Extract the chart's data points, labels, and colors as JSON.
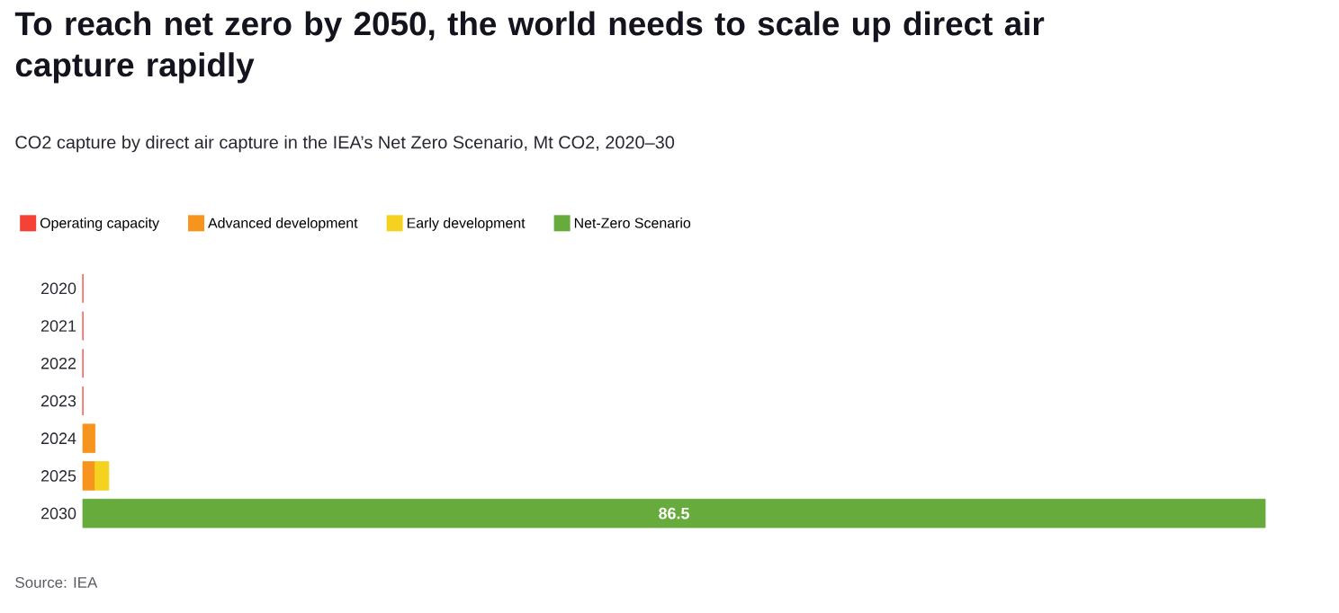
{
  "chart_data": {
    "type": "bar",
    "orientation": "horizontal",
    "stacked": true,
    "title": "To reach net zero by 2050, the world needs to scale up direct air capture rapidly",
    "subtitle": "CO2 capture by direct air capture in the IEA’s Net Zero Scenario, Mt CO2, 2020–30",
    "categories": [
      "2020",
      "2021",
      "2022",
      "2023",
      "2024",
      "2025",
      "2030"
    ],
    "series": [
      {
        "name": "Operating capacity",
        "color": "#f44336",
        "values": [
          0.01,
          0.01,
          0.01,
          0.01,
          null,
          null,
          null
        ]
      },
      {
        "name": "Advanced development",
        "color": "#f7941d",
        "values": [
          null,
          null,
          null,
          null,
          0.9,
          0.9,
          null
        ]
      },
      {
        "name": "Early development",
        "color": "#f5d21f",
        "values": [
          null,
          null,
          null,
          null,
          null,
          1.0,
          null
        ]
      },
      {
        "name": "Net-Zero Scenario",
        "color": "#66ab3c",
        "values": [
          null,
          null,
          null,
          null,
          null,
          null,
          86.5
        ],
        "value_labels": [
          null,
          null,
          null,
          null,
          null,
          null,
          "86.5"
        ]
      }
    ],
    "legend": "top left",
    "annotations": [
      "Source: IEA"
    ]
  }
}
